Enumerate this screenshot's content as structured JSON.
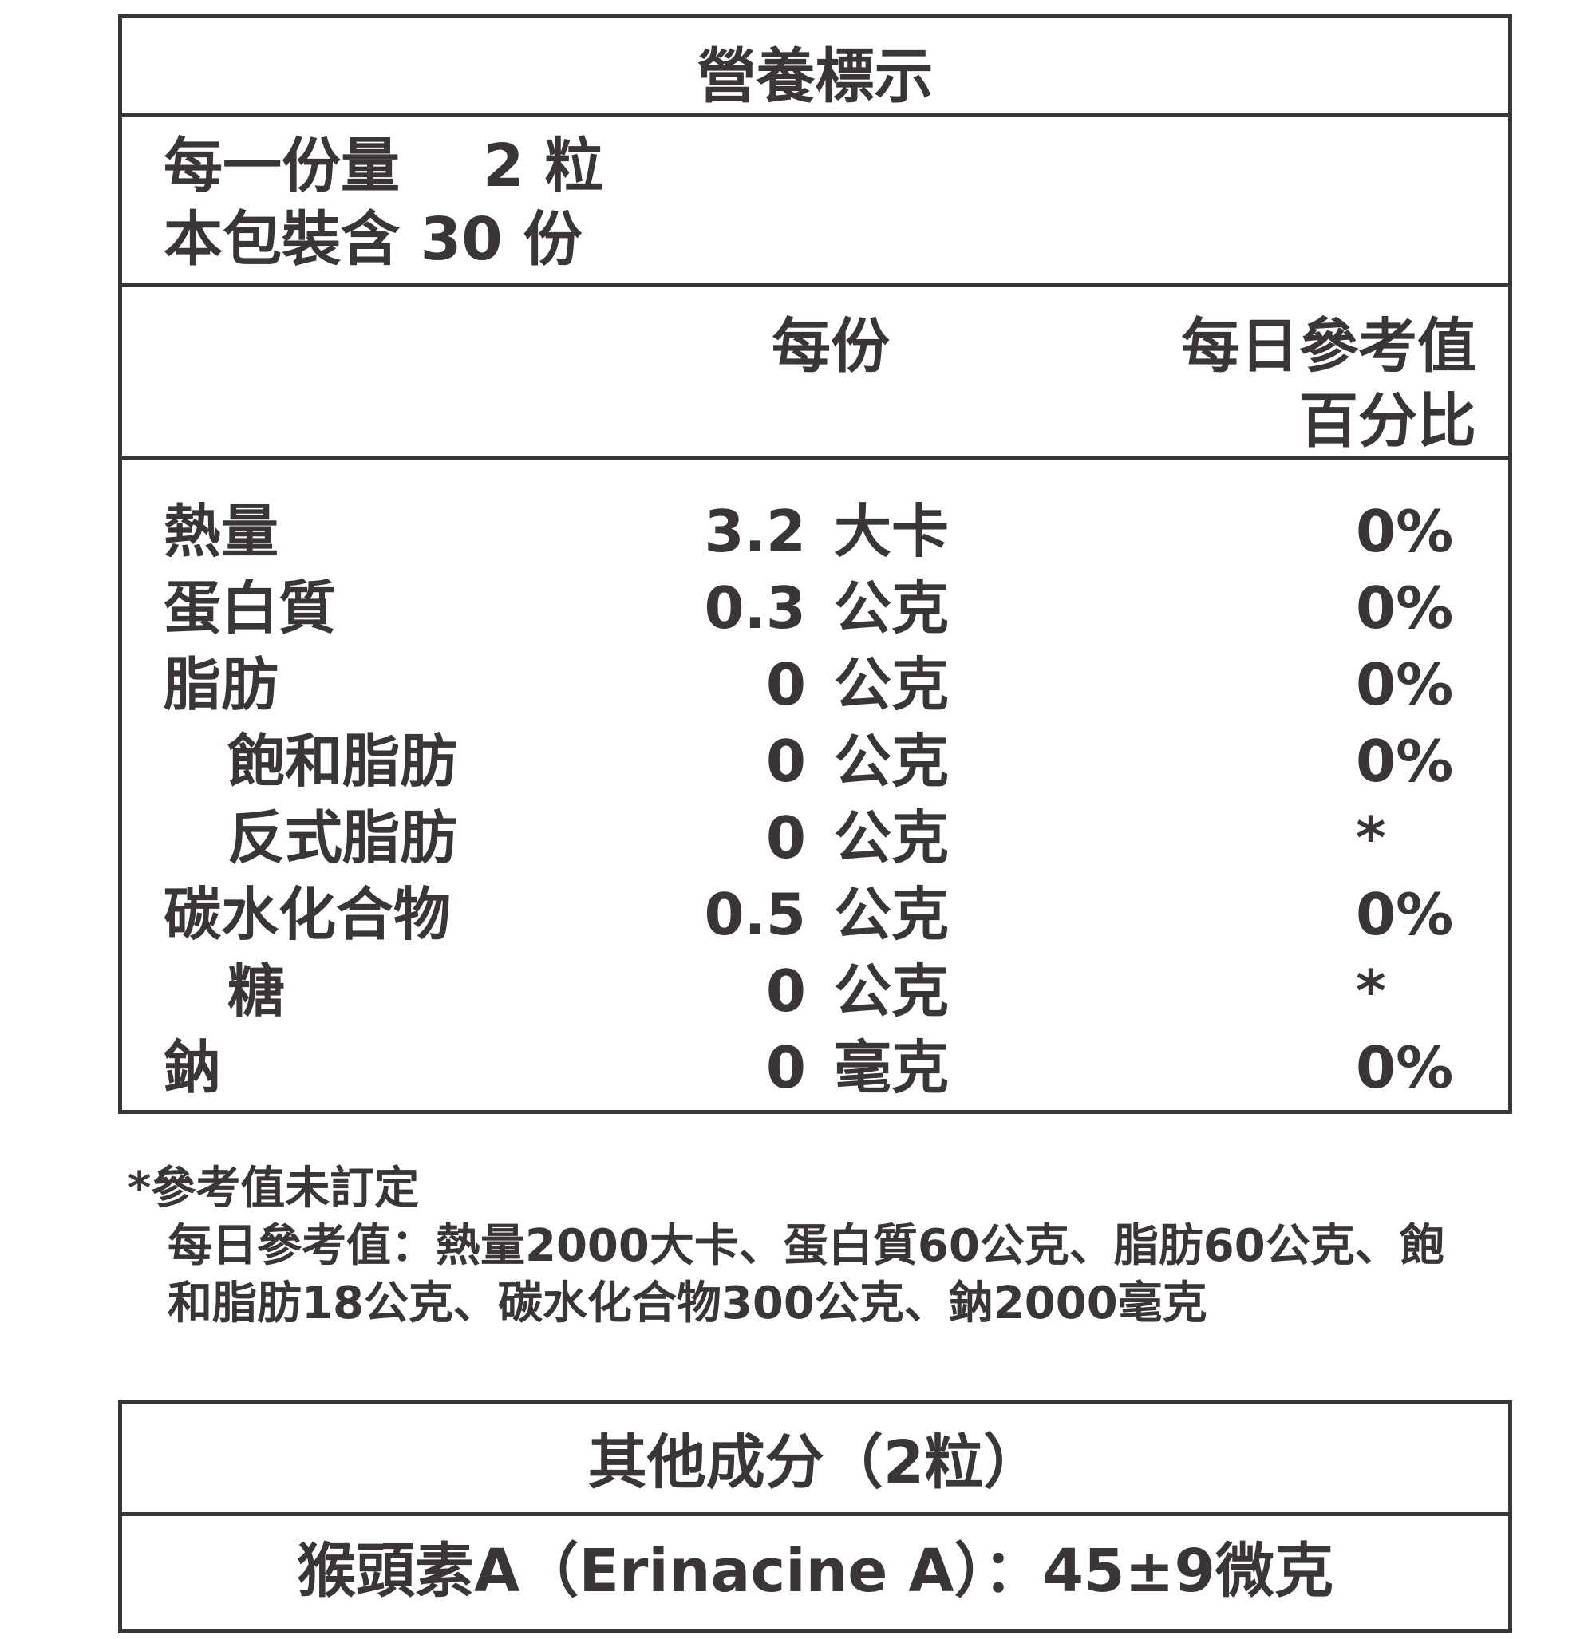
{
  "nutrition": {
    "title": "營養標示",
    "serving_size_label": "每一份量",
    "serving_size_value": "2 粒",
    "servings_per_package": "本包裝含 30 份",
    "col_per_serving": "每份",
    "col_daily_value_line1": "每日參考值",
    "col_daily_value_line2": "百分比",
    "rows": [
      {
        "label": "熱量",
        "amount": "3.2",
        "unit": "大卡",
        "dv": "0%",
        "indent": false
      },
      {
        "label": "蛋白質",
        "amount": "0.3",
        "unit": "公克",
        "dv": "0%",
        "indent": false
      },
      {
        "label": "脂肪",
        "amount": "0",
        "unit": "公克",
        "dv": "0%",
        "indent": false
      },
      {
        "label": "飽和脂肪",
        "amount": "0",
        "unit": "公克",
        "dv": "0%",
        "indent": true
      },
      {
        "label": "反式脂肪",
        "amount": "0",
        "unit": "公克",
        "dv": "*",
        "indent": true
      },
      {
        "label": "碳水化合物",
        "amount": "0.5",
        "unit": "公克",
        "dv": "0%",
        "indent": false
      },
      {
        "label": "糖",
        "amount": "0",
        "unit": "公克",
        "dv": "*",
        "indent": true
      },
      {
        "label": "鈉",
        "amount": "0",
        "unit": "毫克",
        "dv": "0%",
        "indent": false
      }
    ]
  },
  "footnote": {
    "line1": "*參考值未訂定",
    "line2": "每日參考值：熱量2000大卡、蛋白質60公克、脂肪60公克、飽",
    "line3": "和脂肪18公克、碳水化合物300公克、鈉2000毫克"
  },
  "other": {
    "title": "其他成分（2粒）",
    "item": "猴頭素A（Erinacine A）：45±9微克"
  }
}
